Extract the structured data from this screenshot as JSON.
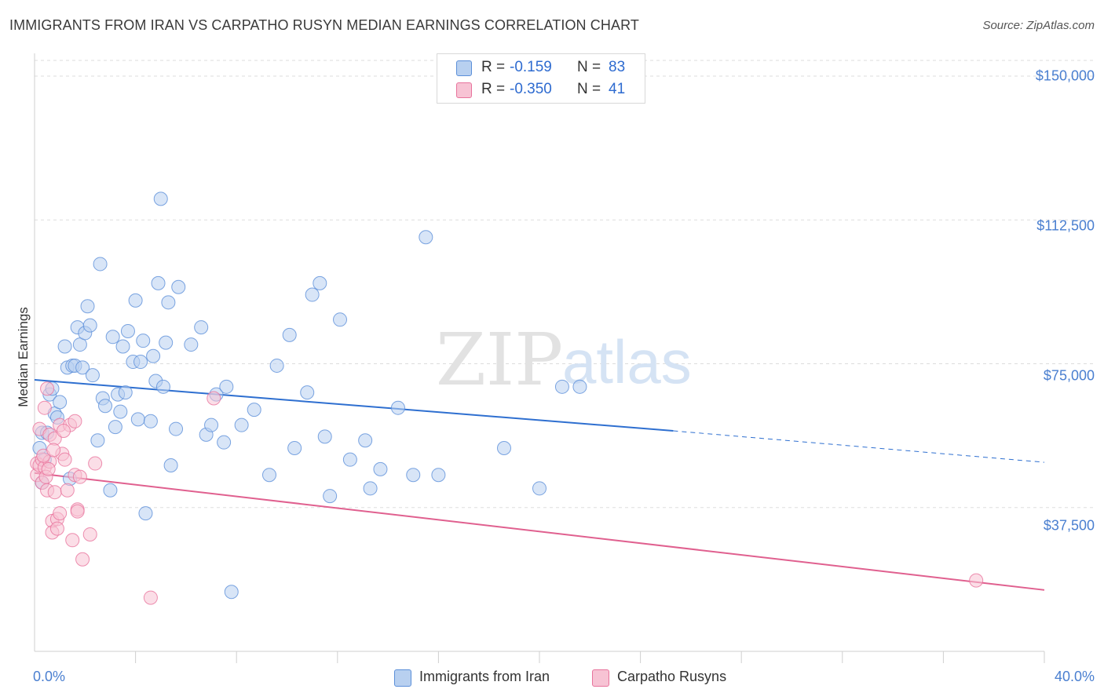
{
  "title": "IMMIGRANTS FROM IRAN VS CARPATHO RUSYN MEDIAN EARNINGS CORRELATION CHART",
  "source": "Source: ZipAtlas.com",
  "watermark": {
    "zip": "ZIP",
    "atlas": "atlas"
  },
  "colors": {
    "blue": "#5b8fd9",
    "blue_fill": "#b8d0f0",
    "pink": "#e8739c",
    "pink_fill": "#f7c3d4",
    "axis_text": "#4a7fd0",
    "grid": "#dddddd"
  },
  "legend": {
    "rows": [
      {
        "r_label": "R =",
        "r_value": "-0.159",
        "n_label": "N =",
        "n_value": "83"
      },
      {
        "r_label": "R =",
        "r_value": "-0.350",
        "n_label": "N =",
        "n_value": "41"
      }
    ]
  },
  "bottom_legend": [
    "Immigrants from Iran",
    "Carpatho Rusyns"
  ],
  "chart_data": {
    "type": "scatter",
    "title": "IMMIGRANTS FROM IRAN VS CARPATHO RUSYN MEDIAN EARNINGS CORRELATION CHART",
    "xlabel": "",
    "ylabel": "Median Earnings",
    "xlim": [
      0,
      40
    ],
    "ylim": [
      0,
      155000
    ],
    "x_tick_labels": [
      "0.0%",
      "40.0%"
    ],
    "y_ticks": [
      37500,
      75000,
      112500,
      150000
    ],
    "y_tick_labels": [
      "$37,500",
      "$75,000",
      "$112,500",
      "$150,000"
    ],
    "series": [
      {
        "name": "Immigrants from Iran",
        "color": "#5b8fd9",
        "trend": {
          "x0": 0,
          "y0": 70800,
          "x1": 25.3,
          "y1": 57500,
          "dashed_to_x": 40,
          "dashed_to_y": 49300
        },
        "points": [
          [
            0.2,
            53000
          ],
          [
            0.3,
            57000
          ],
          [
            0.3,
            44000
          ],
          [
            0.4,
            50000
          ],
          [
            0.5,
            57000
          ],
          [
            0.6,
            67000
          ],
          [
            0.7,
            68500
          ],
          [
            0.8,
            62000
          ],
          [
            0.9,
            61000
          ],
          [
            1.0,
            65000
          ],
          [
            1.2,
            79500
          ],
          [
            1.3,
            74000
          ],
          [
            1.4,
            45000
          ],
          [
            1.5,
            74500
          ],
          [
            1.6,
            74500
          ],
          [
            1.7,
            84500
          ],
          [
            1.8,
            80000
          ],
          [
            1.9,
            74000
          ],
          [
            2.0,
            83000
          ],
          [
            2.1,
            90000
          ],
          [
            2.2,
            85000
          ],
          [
            2.3,
            72000
          ],
          [
            2.5,
            55000
          ],
          [
            2.6,
            101000
          ],
          [
            2.7,
            66000
          ],
          [
            2.8,
            64000
          ],
          [
            3.0,
            42000
          ],
          [
            3.1,
            82000
          ],
          [
            3.2,
            58500
          ],
          [
            3.3,
            67000
          ],
          [
            3.4,
            62500
          ],
          [
            3.5,
            79500
          ],
          [
            3.6,
            67500
          ],
          [
            3.7,
            83500
          ],
          [
            3.9,
            75500
          ],
          [
            4.0,
            91500
          ],
          [
            4.1,
            60500
          ],
          [
            4.2,
            75500
          ],
          [
            4.3,
            81000
          ],
          [
            4.4,
            36000
          ],
          [
            4.6,
            60000
          ],
          [
            4.7,
            77000
          ],
          [
            4.8,
            70500
          ],
          [
            4.9,
            96000
          ],
          [
            5.0,
            118000
          ],
          [
            5.1,
            69000
          ],
          [
            5.2,
            80500
          ],
          [
            5.3,
            91000
          ],
          [
            5.4,
            48500
          ],
          [
            5.6,
            58000
          ],
          [
            5.7,
            95000
          ],
          [
            6.2,
            80000
          ],
          [
            6.6,
            84500
          ],
          [
            6.8,
            56500
          ],
          [
            7.0,
            59000
          ],
          [
            7.2,
            67000
          ],
          [
            7.5,
            54500
          ],
          [
            7.6,
            69000
          ],
          [
            7.8,
            15500
          ],
          [
            8.2,
            59000
          ],
          [
            8.7,
            63000
          ],
          [
            9.3,
            46000
          ],
          [
            9.6,
            74500
          ],
          [
            10.1,
            82500
          ],
          [
            10.3,
            53000
          ],
          [
            10.8,
            67500
          ],
          [
            11.0,
            93000
          ],
          [
            11.3,
            96000
          ],
          [
            11.5,
            56000
          ],
          [
            11.7,
            40500
          ],
          [
            12.1,
            86500
          ],
          [
            12.5,
            50000
          ],
          [
            13.1,
            55000
          ],
          [
            13.3,
            42500
          ],
          [
            13.7,
            47500
          ],
          [
            14.4,
            63500
          ],
          [
            15.0,
            46000
          ],
          [
            15.5,
            108000
          ],
          [
            16.0,
            46000
          ],
          [
            18.6,
            53000
          ],
          [
            20.0,
            42500
          ],
          [
            20.9,
            69000
          ],
          [
            21.6,
            69000
          ]
        ]
      },
      {
        "name": "Carpatho Rusyns",
        "color": "#e8739c",
        "trend": {
          "x0": 0,
          "y0": 46500,
          "x1": 40,
          "y1": 16000
        },
        "points": [
          [
            0.1,
            49000
          ],
          [
            0.1,
            46000
          ],
          [
            0.2,
            58000
          ],
          [
            0.2,
            48500
          ],
          [
            0.3,
            50000
          ],
          [
            0.3,
            44000
          ],
          [
            0.4,
            63500
          ],
          [
            0.4,
            48000
          ],
          [
            0.5,
            68500
          ],
          [
            0.5,
            42000
          ],
          [
            0.6,
            56500
          ],
          [
            0.6,
            49500
          ],
          [
            0.7,
            34000
          ],
          [
            0.7,
            31000
          ],
          [
            0.8,
            55500
          ],
          [
            0.8,
            41500
          ],
          [
            0.9,
            34500
          ],
          [
            0.9,
            32000
          ],
          [
            1.0,
            59000
          ],
          [
            1.0,
            36000
          ],
          [
            1.1,
            51500
          ],
          [
            1.2,
            50000
          ],
          [
            1.3,
            42000
          ],
          [
            1.4,
            59000
          ],
          [
            1.5,
            29000
          ],
          [
            1.6,
            46000
          ],
          [
            1.6,
            60000
          ],
          [
            1.7,
            37000
          ],
          [
            1.7,
            36500
          ],
          [
            1.8,
            45500
          ],
          [
            1.9,
            24000
          ],
          [
            2.2,
            30500
          ],
          [
            2.4,
            49000
          ],
          [
            4.6,
            14000
          ],
          [
            7.1,
            66000
          ],
          [
            37.3,
            18500
          ],
          [
            0.35,
            51000
          ],
          [
            0.45,
            45500
          ],
          [
            0.55,
            47500
          ],
          [
            0.75,
            52500
          ],
          [
            1.15,
            57500
          ]
        ]
      }
    ]
  }
}
